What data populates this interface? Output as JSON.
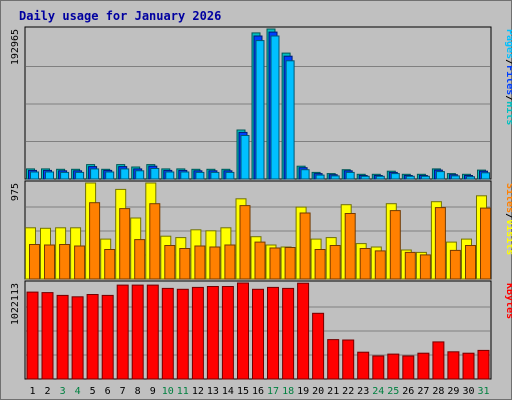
{
  "chart_data": {
    "type": "bar",
    "title": "Daily usage for January 2026",
    "categories": [
      "1",
      "2",
      "3",
      "4",
      "5",
      "6",
      "7",
      "8",
      "9",
      "10",
      "11",
      "12",
      "13",
      "14",
      "15",
      "16",
      "17",
      "18",
      "19",
      "20",
      "21",
      "22",
      "23",
      "24",
      "25",
      "26",
      "27",
      "28",
      "29",
      "30",
      "31"
    ],
    "weekend_days": [
      3,
      4,
      10,
      11,
      17,
      18,
      24,
      25,
      31
    ],
    "colors": {
      "title": "#0000a0",
      "pages": "#00c0ff",
      "files": "#0040ff",
      "hits": "#00c0c0",
      "sites": "#ff8000",
      "visits": "#ffff00",
      "kbytes": "#ff0000",
      "separator": "#000000",
      "weekday_label": "#000000",
      "weekend_label": "#008040"
    },
    "panels": [
      {
        "name": "hits-panel",
        "max_label": "192965",
        "ylim": [
          0,
          192965
        ],
        "legend": [
          "Pages",
          "/",
          "Files",
          "/",
          "Hits"
        ],
        "legend_colors": [
          "pages",
          "separator",
          "files",
          "separator",
          "hits"
        ],
        "series": [
          {
            "name": "Hits",
            "color": "hits",
            "values": [
              13000,
              13000,
              12500,
              12500,
              18500,
              12500,
              18500,
              15500,
              18500,
              13000,
              13000,
              12500,
              12500,
              12500,
              63000,
              188000,
              192965,
              162000,
              16500,
              8500,
              7000,
              12000,
              6000,
              6000,
              10000,
              6000,
              6000,
              13000,
              7000,
              6000,
              11500
            ]
          },
          {
            "name": "Files",
            "color": "files",
            "values": [
              11000,
              11000,
              10500,
              10500,
              16000,
              11000,
              16000,
              13000,
              16500,
              11000,
              11000,
              10500,
              10500,
              10500,
              60000,
              184000,
              189000,
              158000,
              14500,
              7000,
              5500,
              10500,
              4500,
              4500,
              8500,
              4500,
              4500,
              11500,
              5500,
              4500,
              10000
            ]
          },
          {
            "name": "Pages",
            "color": "pages",
            "values": [
              9000,
              9000,
              8500,
              8500,
              13000,
              9000,
              13000,
              10500,
              13500,
              9000,
              9000,
              8500,
              8500,
              8500,
              56000,
              178000,
              184000,
              152000,
              12000,
              5000,
              4000,
              8500,
              3500,
              3500,
              7000,
              3500,
              3500,
              9500,
              4000,
              3000,
              8000
            ]
          }
        ]
      },
      {
        "name": "visits-panel",
        "max_label": "975",
        "ylim": [
          0,
          975
        ],
        "legend": [
          "Sites",
          "/",
          "Visits"
        ],
        "legend_colors": [
          "sites",
          "separator",
          "visits"
        ],
        "series": [
          {
            "name": "Visits",
            "color": "visits",
            "values": [
              520,
              515,
              520,
              520,
              975,
              405,
              910,
              620,
              975,
              435,
              420,
              500,
              490,
              520,
              815,
              430,
              345,
              325,
              730,
              405,
              420,
              755,
              360,
              325,
              765,
              295,
              270,
              785,
              375,
              405,
              845
            ]
          },
          {
            "name": "Sites",
            "color": "sites",
            "values": [
              350,
              345,
              350,
              335,
              775,
              300,
              715,
              400,
              765,
              340,
              310,
              335,
              325,
              345,
              745,
              375,
              315,
              320,
              670,
              300,
              340,
              665,
              310,
              285,
              695,
              270,
              245,
              725,
              290,
              340,
              720
            ]
          }
        ]
      },
      {
        "name": "kbytes-panel",
        "max_label": "1022113",
        "ylim": [
          0,
          1022113
        ],
        "legend": [
          "KBytes"
        ],
        "legend_colors": [
          "kbytes"
        ],
        "series": [
          {
            "name": "KBytes",
            "color": "kbytes",
            "values": [
              925000,
              920000,
              890000,
              875000,
              900000,
              890000,
              1000000,
              1000000,
              1000000,
              965000,
              955000,
              975000,
              985000,
              985000,
              1022113,
              955000,
              975000,
              965000,
              1020000,
              700000,
              420000,
              415000,
              285000,
              245000,
              265000,
              245000,
              275000,
              395000,
              290000,
              275000,
              305000
            ]
          }
        ]
      }
    ]
  }
}
